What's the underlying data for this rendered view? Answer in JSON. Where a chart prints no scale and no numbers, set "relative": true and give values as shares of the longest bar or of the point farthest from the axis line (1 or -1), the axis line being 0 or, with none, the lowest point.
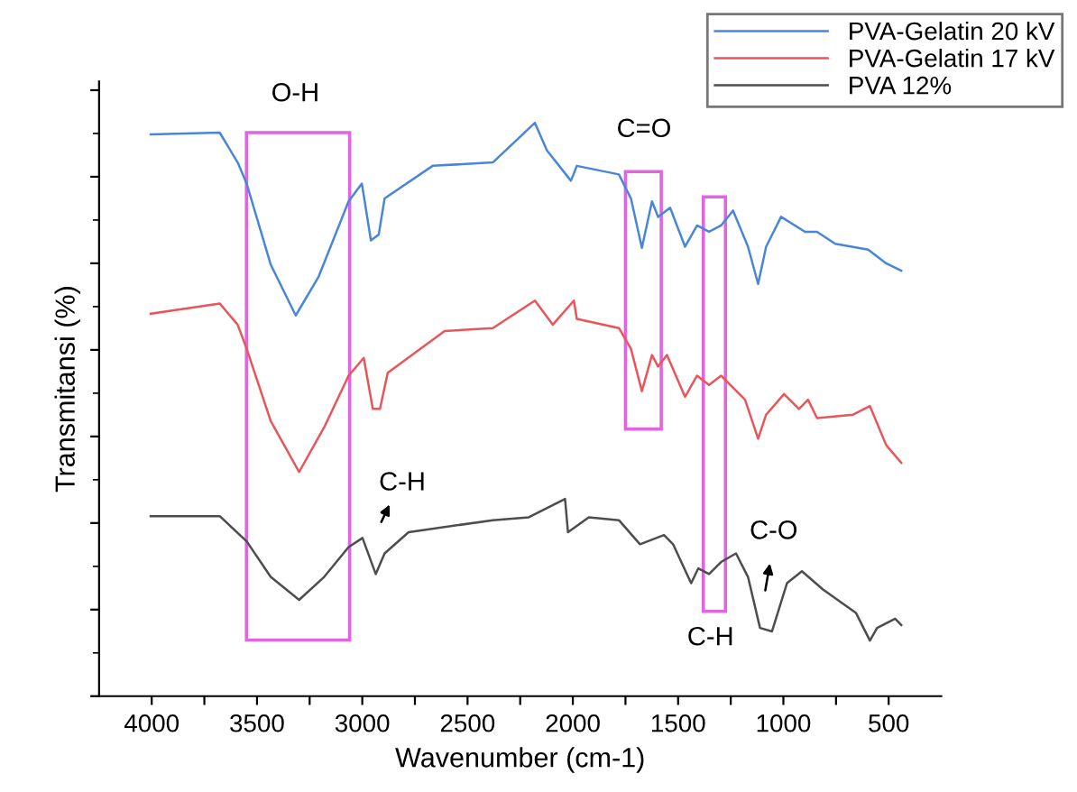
{
  "chart_data": {
    "type": "line",
    "relative": true,
    "xlabel": "Wavenumber (cm-1)",
    "ylabel": "Transmitansi (%)",
    "xlim": [
      4250,
      250
    ],
    "xticks": [
      4000,
      {
        "value": 3750,
        "label": null
      },
      3500,
      {
        "value": 3250,
        "label": null
      },
      3000,
      {
        "value": 2750,
        "label": null
      },
      2500,
      {
        "value": 2250,
        "label": null
      },
      2000,
      {
        "value": 1750,
        "label": null
      },
      1500,
      {
        "value": 1250,
        "label": null
      },
      1000,
      {
        "value": 750,
        "label": null
      },
      500
    ],
    "tick_labels": "x",
    "grid": false,
    "legend": "top right",
    "line_style": "solid",
    "marker": "none",
    "annotations": [
      "O-H",
      "C=O",
      "C-H",
      "C-H",
      "C-O"
    ],
    "series": [
      {
        "name": "PVA-Gelatin 20 kV",
        "color": "#4a86d8",
        "x": [
          4005,
          3677,
          3592,
          3549,
          3435,
          3316,
          3207,
          3065,
          3002,
          2959,
          2922,
          2894,
          2666,
          2380,
          2180,
          2123,
          2009,
          1981,
          1781,
          1724,
          1672,
          1624,
          1595,
          1538,
          1467,
          1410,
          1353,
          1296,
          1239,
          1168,
          1120,
          1082,
          1011,
          897,
          840,
          754,
          597,
          512,
          440
        ],
        "values": [
          0.98,
          0.983,
          0.931,
          0.894,
          0.753,
          0.664,
          0.732,
          0.863,
          0.894,
          0.795,
          0.805,
          0.868,
          0.925,
          0.931,
          1.0,
          0.952,
          0.899,
          0.925,
          0.91,
          0.868,
          0.782,
          0.863,
          0.836,
          0.852,
          0.784,
          0.821,
          0.81,
          0.821,
          0.847,
          0.784,
          0.719,
          0.784,
          0.836,
          0.81,
          0.81,
          0.789,
          0.779,
          0.755,
          0.742
        ]
      },
      {
        "name": "PVA-Gelatin 17 kV",
        "color": "#e8555a",
        "x": [
          4005,
          3677,
          3592,
          3549,
          3435,
          3300,
          3181,
          3065,
          2993,
          2950,
          2916,
          2879,
          2609,
          2380,
          2180,
          2095,
          1995,
          1981,
          1781,
          1724,
          1672,
          1624,
          1595,
          1553,
          1467,
          1410,
          1353,
          1296,
          1182,
          1120,
          1082,
          997,
          926,
          883,
          840,
          669,
          589,
          512,
          440
        ],
        "values": [
          0.667,
          0.685,
          0.648,
          0.606,
          0.48,
          0.391,
          0.469,
          0.559,
          0.59,
          0.501,
          0.501,
          0.564,
          0.637,
          0.642,
          0.69,
          0.648,
          0.69,
          0.658,
          0.642,
          0.606,
          0.532,
          0.595,
          0.575,
          0.595,
          0.522,
          0.559,
          0.543,
          0.559,
          0.517,
          0.449,
          0.491,
          0.527,
          0.501,
          0.517,
          0.485,
          0.491,
          0.506,
          0.438,
          0.407
        ]
      },
      {
        "name": "PVA 12%",
        "color": "#4d4d4d",
        "x": [
          4005,
          3677,
          3549,
          3435,
          3300,
          3181,
          3065,
          2999,
          2936,
          2894,
          2780,
          2380,
          2209,
          2037,
          2023,
          1924,
          1781,
          1681,
          1567,
          1524,
          1438,
          1404,
          1353,
          1296,
          1225,
          1168,
          1111,
          1054,
          983,
          912,
          812,
          655,
          589,
          555,
          469,
          440
        ],
        "values": [
          0.314,
          0.314,
          0.27,
          0.208,
          0.168,
          0.208,
          0.26,
          0.276,
          0.213,
          0.249,
          0.286,
          0.307,
          0.312,
          0.344,
          0.286,
          0.312,
          0.307,
          0.265,
          0.281,
          0.265,
          0.197,
          0.223,
          0.213,
          0.234,
          0.249,
          0.208,
          0.119,
          0.113,
          0.197,
          0.218,
          0.186,
          0.145,
          0.097,
          0.119,
          0.135,
          0.124
        ]
      }
    ]
  }
}
